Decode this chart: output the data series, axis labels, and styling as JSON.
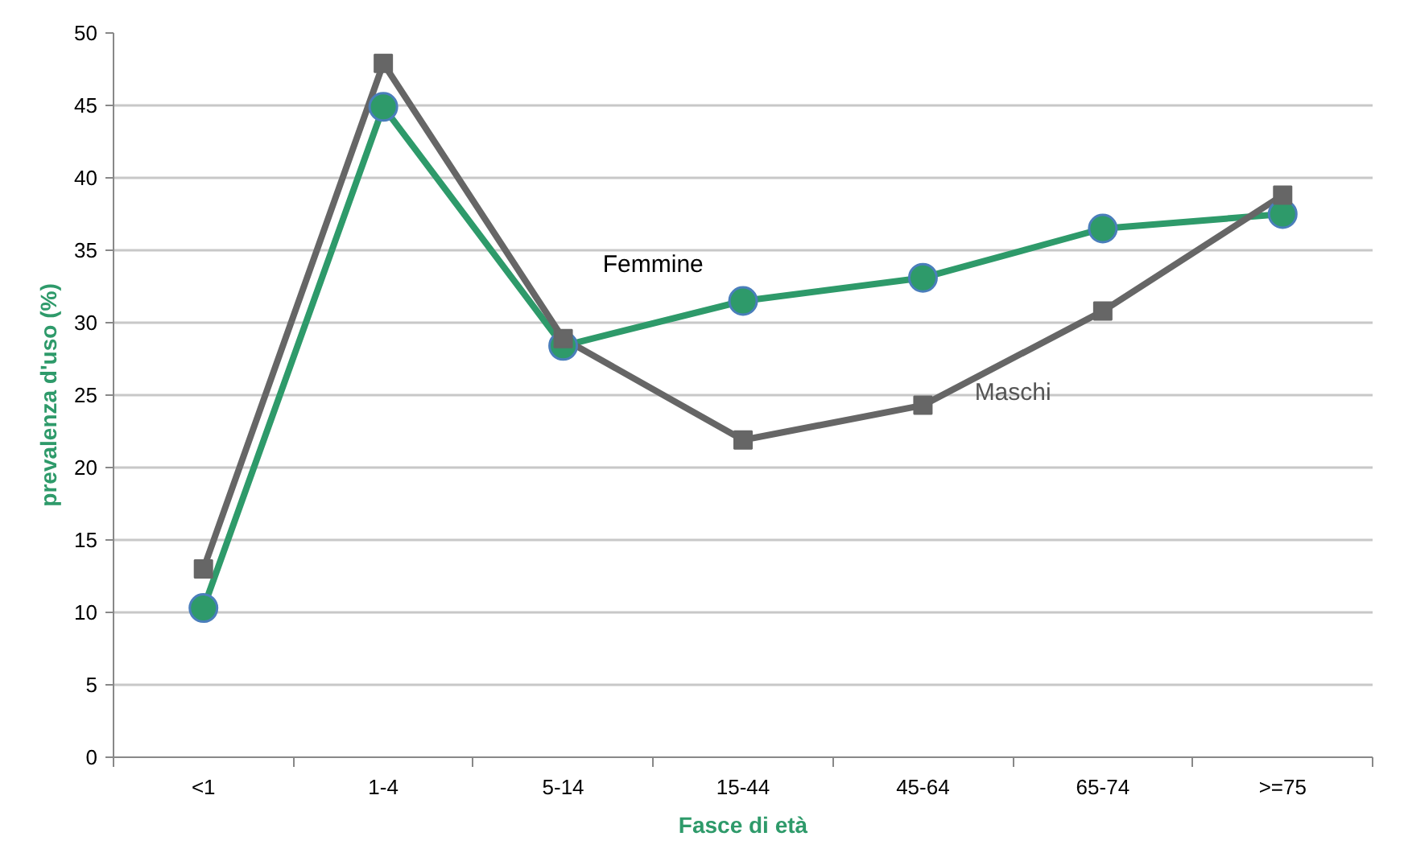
{
  "chart_data": {
    "type": "line",
    "categories": [
      "<1",
      "1-4",
      "5-14",
      "15-44",
      "45-64",
      "65-74",
      ">=75"
    ],
    "series": [
      {
        "name": "Femmine",
        "color": "#2e9a6a",
        "marker": "circle",
        "values": [
          10.3,
          44.9,
          28.4,
          31.5,
          33.1,
          36.5,
          37.5
        ]
      },
      {
        "name": "Maschi",
        "color": "#666666",
        "marker": "square",
        "values": [
          13.0,
          47.9,
          28.9,
          21.9,
          24.3,
          30.8,
          38.8
        ]
      }
    ],
    "xlabel": "Fasce di età",
    "ylabel": "prevalenza d'uso (%)",
    "ylim": [
      0,
      50
    ],
    "yticks": [
      0,
      5,
      10,
      15,
      20,
      25,
      30,
      35,
      40,
      45,
      50
    ],
    "grid": "y"
  }
}
